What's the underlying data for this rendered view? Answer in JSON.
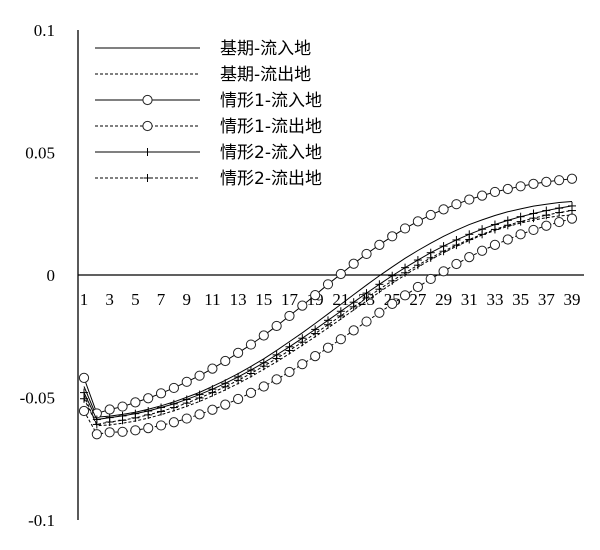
{
  "chart_data": {
    "type": "line",
    "x": [
      1,
      2,
      3,
      4,
      5,
      6,
      7,
      8,
      9,
      10,
      11,
      12,
      13,
      14,
      15,
      16,
      17,
      18,
      19,
      20,
      21,
      22,
      23,
      24,
      25,
      26,
      27,
      28,
      29,
      30,
      31,
      32,
      33,
      34,
      35,
      36,
      37,
      38,
      39
    ],
    "x_tick_labels": [
      "1",
      "3",
      "5",
      "7",
      "9",
      "11",
      "13",
      "15",
      "17",
      "19",
      "21",
      "23",
      "25",
      "27",
      "29",
      "31",
      "33",
      "35",
      "37",
      "39"
    ],
    "y_tick_labels": [
      "0.1",
      "0.05",
      "0",
      "-0.05",
      "-0.1"
    ],
    "y_ticks": [
      0.1,
      0.05,
      0,
      -0.05,
      -0.1
    ],
    "ylim": [
      -0.1,
      0.1
    ],
    "xlim": [
      1,
      39
    ],
    "legend_position": "top-left",
    "grid": false,
    "series": [
      {
        "name": "基期-流入地",
        "line_style": "solid",
        "marker": "none",
        "values": [
          -0.0455,
          -0.058,
          -0.0576,
          -0.0569,
          -0.056,
          -0.0548,
          -0.0534,
          -0.0518,
          -0.0499,
          -0.0479,
          -0.0455,
          -0.043,
          -0.0403,
          -0.0373,
          -0.0342,
          -0.0308,
          -0.0272,
          -0.0236,
          -0.0198,
          -0.0159,
          -0.012,
          -0.008,
          -0.0041,
          -0.0003,
          0.0033,
          0.0068,
          0.01,
          0.013,
          0.0158,
          0.0183,
          0.0206,
          0.0225,
          0.0243,
          0.0258,
          0.027,
          0.0281,
          0.0289,
          0.0296,
          0.03
        ]
      },
      {
        "name": "基期-流出地",
        "line_style": "dashed",
        "marker": "none",
        "values": [
          -0.049,
          -0.0615,
          -0.0612,
          -0.0605,
          -0.0596,
          -0.0584,
          -0.057,
          -0.0554,
          -0.0536,
          -0.0516,
          -0.0493,
          -0.0469,
          -0.0443,
          -0.0415,
          -0.0385,
          -0.0354,
          -0.0321,
          -0.0287,
          -0.0252,
          -0.0216,
          -0.018,
          -0.0143,
          -0.0106,
          -0.007,
          -0.0034,
          0.0,
          0.0032,
          0.0063,
          0.0091,
          0.0117,
          0.0141,
          0.0163,
          0.0182,
          0.0198,
          0.0212,
          0.0224,
          0.0234,
          0.0241,
          0.0245
        ]
      },
      {
        "name": "情形1-流入地",
        "line_style": "solid",
        "marker": "circle",
        "values": [
          -0.042,
          -0.0565,
          -0.0549,
          -0.0537,
          -0.052,
          -0.0503,
          -0.0483,
          -0.0461,
          -0.0436,
          -0.0411,
          -0.0382,
          -0.0351,
          -0.0318,
          -0.0284,
          -0.0247,
          -0.0208,
          -0.0167,
          -0.0125,
          -0.0082,
          -0.0038,
          0.0004,
          0.0046,
          0.0086,
          0.0123,
          0.0158,
          0.019,
          0.0219,
          0.0245,
          0.0268,
          0.0289,
          0.0308,
          0.0324,
          0.0339,
          0.0351,
          0.0362,
          0.0372,
          0.038,
          0.0387,
          0.0393
        ]
      },
      {
        "name": "情形1-流出地",
        "line_style": "dashed",
        "marker": "circle",
        "values": [
          -0.0555,
          -0.065,
          -0.0642,
          -0.064,
          -0.0634,
          -0.0625,
          -0.0614,
          -0.0601,
          -0.0586,
          -0.0569,
          -0.055,
          -0.0529,
          -0.0506,
          -0.0481,
          -0.0455,
          -0.0426,
          -0.0396,
          -0.0364,
          -0.0331,
          -0.0297,
          -0.0262,
          -0.0226,
          -0.019,
          -0.0154,
          -0.0118,
          -0.0083,
          -0.0049,
          -0.0016,
          0.0015,
          0.0045,
          0.0073,
          0.0099,
          0.0123,
          0.0145,
          0.0166,
          0.0184,
          0.0201,
          0.0216,
          0.023
        ]
      },
      {
        "name": "情形2-流入地",
        "line_style": "solid",
        "marker": "plus",
        "values": [
          -0.048,
          -0.059,
          -0.0582,
          -0.0575,
          -0.0566,
          -0.0555,
          -0.0541,
          -0.0526,
          -0.0508,
          -0.0488,
          -0.0466,
          -0.0442,
          -0.0416,
          -0.0388,
          -0.0358,
          -0.0326,
          -0.0293,
          -0.0258,
          -0.0222,
          -0.0185,
          -0.0148,
          -0.0111,
          -0.0074,
          -0.0038,
          -0.0003,
          0.003,
          0.0061,
          0.0091,
          0.0118,
          0.0143,
          0.0166,
          0.0187,
          0.0206,
          0.0223,
          0.0238,
          0.0251,
          0.0263,
          0.0273,
          0.0282
        ]
      },
      {
        "name": "情形2-流出地",
        "line_style": "dashed",
        "marker": "plus",
        "values": [
          -0.0505,
          -0.061,
          -0.06,
          -0.0593,
          -0.0583,
          -0.0571,
          -0.0557,
          -0.0541,
          -0.0523,
          -0.0502,
          -0.048,
          -0.0456,
          -0.043,
          -0.0402,
          -0.0372,
          -0.0341,
          -0.0308,
          -0.0274,
          -0.0239,
          -0.0203,
          -0.0167,
          -0.013,
          -0.0094,
          -0.0058,
          -0.0024,
          0.0009,
          0.004,
          0.007,
          0.0097,
          0.0122,
          0.0145,
          0.0166,
          0.0186,
          0.0203,
          0.0218,
          0.0232,
          0.0244,
          0.0255,
          0.0263
        ]
      }
    ]
  }
}
